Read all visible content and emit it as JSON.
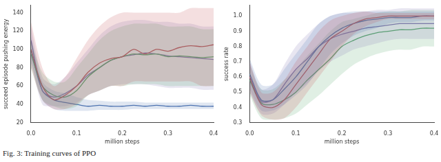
{
  "caption": "Fig. 3: Training curves of PPO",
  "chart_data": [
    {
      "type": "line",
      "x_label": "million steps",
      "y_label": "succeed episode pushing energy",
      "x": [
        0,
        0.025,
        0.05,
        0.075,
        0.1,
        0.125,
        0.15,
        0.175,
        0.2,
        0.225,
        0.25,
        0.275,
        0.3,
        0.325,
        0.35,
        0.375,
        0.4
      ],
      "xlim": [
        0,
        0.4
      ],
      "xticks": [
        {
          "value": 0,
          "label": "0.0"
        },
        0.1,
        0.2,
        0.3,
        0.4
      ],
      "ylim": [
        20,
        148
      ],
      "yticks": [
        20,
        40,
        60,
        80,
        100,
        120,
        140
      ],
      "grid": false,
      "series": [
        {
          "color": "#c44e52",
          "values": [
            100,
            60,
            45,
            50,
            60,
            75,
            85,
            90,
            92,
            100,
            95,
            100,
            98,
            102,
            104,
            103,
            105
          ],
          "lower": [
            80,
            45,
            35,
            35,
            40,
            50,
            55,
            60,
            60,
            65,
            65,
            65,
            65,
            65,
            65,
            60,
            60
          ],
          "upper": [
            130,
            80,
            60,
            70,
            90,
            110,
            125,
            135,
            140,
            140,
            140,
            140,
            140,
            140,
            145,
            145,
            145
          ]
        },
        {
          "color": "#55a868",
          "values": [
            95,
            60,
            50,
            48,
            55,
            70,
            80,
            88,
            92,
            95,
            94,
            95,
            92,
            93,
            92,
            91,
            92
          ],
          "lower": [
            80,
            45,
            38,
            35,
            38,
            50,
            55,
            60,
            60,
            62,
            62,
            62,
            60,
            60,
            60,
            60,
            60
          ],
          "upper": [
            110,
            75,
            65,
            65,
            80,
            95,
            110,
            120,
            125,
            128,
            128,
            128,
            125,
            125,
            125,
            122,
            122
          ]
        },
        {
          "color": "#8172b2",
          "values": [
            110,
            55,
            48,
            52,
            60,
            72,
            80,
            88,
            92,
            94,
            96,
            95,
            93,
            92,
            91,
            90,
            89
          ],
          "lower": [
            90,
            40,
            38,
            38,
            42,
            50,
            55,
            60,
            62,
            62,
            62,
            60,
            58,
            58,
            58,
            56,
            56
          ],
          "upper": [
            125,
            70,
            62,
            70,
            85,
            100,
            115,
            125,
            130,
            132,
            132,
            130,
            130,
            128,
            128,
            125,
            125
          ]
        },
        {
          "color": "#4c72b0",
          "values": [
            100,
            55,
            45,
            42,
            40,
            38,
            39,
            38,
            38,
            39,
            38,
            39,
            38,
            38,
            39,
            38,
            38
          ],
          "lower": [
            85,
            45,
            35,
            33,
            33,
            33,
            34,
            34,
            34,
            35,
            35,
            35,
            35,
            35,
            35,
            35,
            35
          ],
          "upper": [
            115,
            65,
            55,
            52,
            48,
            45,
            44,
            43,
            43,
            43,
            42,
            42,
            42,
            42,
            42,
            42,
            42
          ]
        }
      ]
    },
    {
      "type": "line",
      "x_label": "million steps",
      "y_label": "success rate",
      "x": [
        0,
        0.025,
        0.05,
        0.075,
        0.1,
        0.125,
        0.15,
        0.175,
        0.2,
        0.225,
        0.25,
        0.275,
        0.3,
        0.325,
        0.35,
        0.375,
        0.4
      ],
      "xlim": [
        0,
        0.4
      ],
      "xticks": [
        {
          "value": 0,
          "label": "0.0"
        },
        0.1,
        0.2,
        0.3,
        0.4
      ],
      "ylim": [
        0.3,
        1.07
      ],
      "yticks": [
        0.3,
        0.4,
        0.5,
        0.6,
        0.7,
        0.8,
        0.9,
        {
          "value": 1,
          "label": "1.0"
        }
      ],
      "grid": false,
      "series": [
        {
          "color": "#c44e52",
          "values": [
            0.6,
            0.42,
            0.4,
            0.45,
            0.55,
            0.65,
            0.75,
            0.85,
            0.9,
            0.95,
            0.98,
            0.99,
            1.0,
            1.0,
            1.0,
            1.0,
            1.0
          ],
          "lower": [
            0.5,
            0.35,
            0.32,
            0.33,
            0.4,
            0.5,
            0.6,
            0.7,
            0.8,
            0.88,
            0.93,
            0.96,
            0.98,
            0.98,
            0.98,
            0.98,
            0.98
          ],
          "upper": [
            0.7,
            0.5,
            0.5,
            0.58,
            0.7,
            0.8,
            0.9,
            0.97,
            1.0,
            1.02,
            1.03,
            1.02,
            1.02,
            1.02,
            1.02,
            1.02,
            1.02
          ]
        },
        {
          "color": "#4c72b0",
          "values": [
            0.62,
            0.45,
            0.45,
            0.52,
            0.6,
            0.7,
            0.8,
            0.87,
            0.92,
            0.95,
            0.97,
            0.98,
            0.99,
            0.99,
            0.99,
            1.0,
            1.0
          ],
          "lower": [
            0.52,
            0.38,
            0.38,
            0.42,
            0.48,
            0.55,
            0.65,
            0.75,
            0.82,
            0.87,
            0.9,
            0.92,
            0.95,
            0.96,
            0.96,
            0.97,
            0.97
          ],
          "upper": [
            0.72,
            0.55,
            0.55,
            0.65,
            0.75,
            0.85,
            0.95,
            1.0,
            1.02,
            1.03,
            1.03,
            1.03,
            1.03,
            1.03,
            1.03,
            1.03,
            1.03
          ]
        },
        {
          "color": "#8172b2",
          "values": [
            0.6,
            0.44,
            0.45,
            0.55,
            0.65,
            0.72,
            0.8,
            0.85,
            0.88,
            0.9,
            0.92,
            0.93,
            0.94,
            0.95,
            0.95,
            0.95,
            0.95
          ],
          "lower": [
            0.5,
            0.36,
            0.36,
            0.42,
            0.5,
            0.56,
            0.64,
            0.7,
            0.74,
            0.78,
            0.8,
            0.82,
            0.84,
            0.85,
            0.85,
            0.85,
            0.85
          ],
          "upper": [
            0.7,
            0.52,
            0.55,
            0.68,
            0.8,
            0.88,
            0.95,
            1.0,
            1.02,
            1.02,
            1.03,
            1.04,
            1.04,
            1.05,
            1.05,
            1.05,
            1.05
          ]
        },
        {
          "color": "#55a868",
          "values": [
            0.58,
            0.43,
            0.42,
            0.45,
            0.5,
            0.58,
            0.65,
            0.72,
            0.8,
            0.84,
            0.87,
            0.89,
            0.9,
            0.91,
            0.91,
            0.92,
            0.92
          ],
          "lower": [
            0.48,
            0.33,
            0.32,
            0.33,
            0.36,
            0.42,
            0.48,
            0.55,
            0.62,
            0.68,
            0.72,
            0.75,
            0.77,
            0.78,
            0.78,
            0.8,
            0.8
          ],
          "upper": [
            0.68,
            0.52,
            0.52,
            0.58,
            0.65,
            0.74,
            0.82,
            0.9,
            0.96,
            0.98,
            1.0,
            1.02,
            1.03,
            1.03,
            1.04,
            1.04,
            1.04
          ]
        }
      ]
    }
  ]
}
